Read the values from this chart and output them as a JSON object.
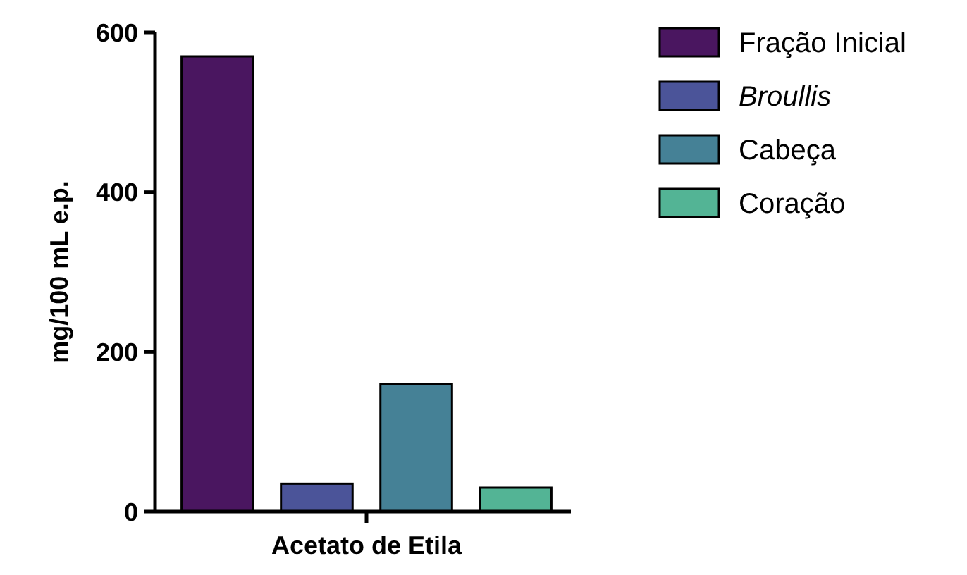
{
  "chart_data": {
    "type": "bar",
    "ylabel": "mg/100 mL e.p.",
    "xlabel": "Acetato de Etila",
    "categories": [
      null
    ],
    "series": [
      {
        "name": "Fração Inicial",
        "color": "#4a1660",
        "values": [
          570
        ]
      },
      {
        "name": "Broullis",
        "color": "#4b5499",
        "values": [
          35
        ]
      },
      {
        "name": "Cabeça",
        "color": "#458196",
        "values": [
          160
        ]
      },
      {
        "name": "Coração",
        "color": "#53b495",
        "values": [
          30
        ]
      }
    ],
    "ylim": [
      0,
      600
    ],
    "yticks": [
      0,
      200,
      400,
      600
    ],
    "grid": false,
    "legend": "right"
  }
}
